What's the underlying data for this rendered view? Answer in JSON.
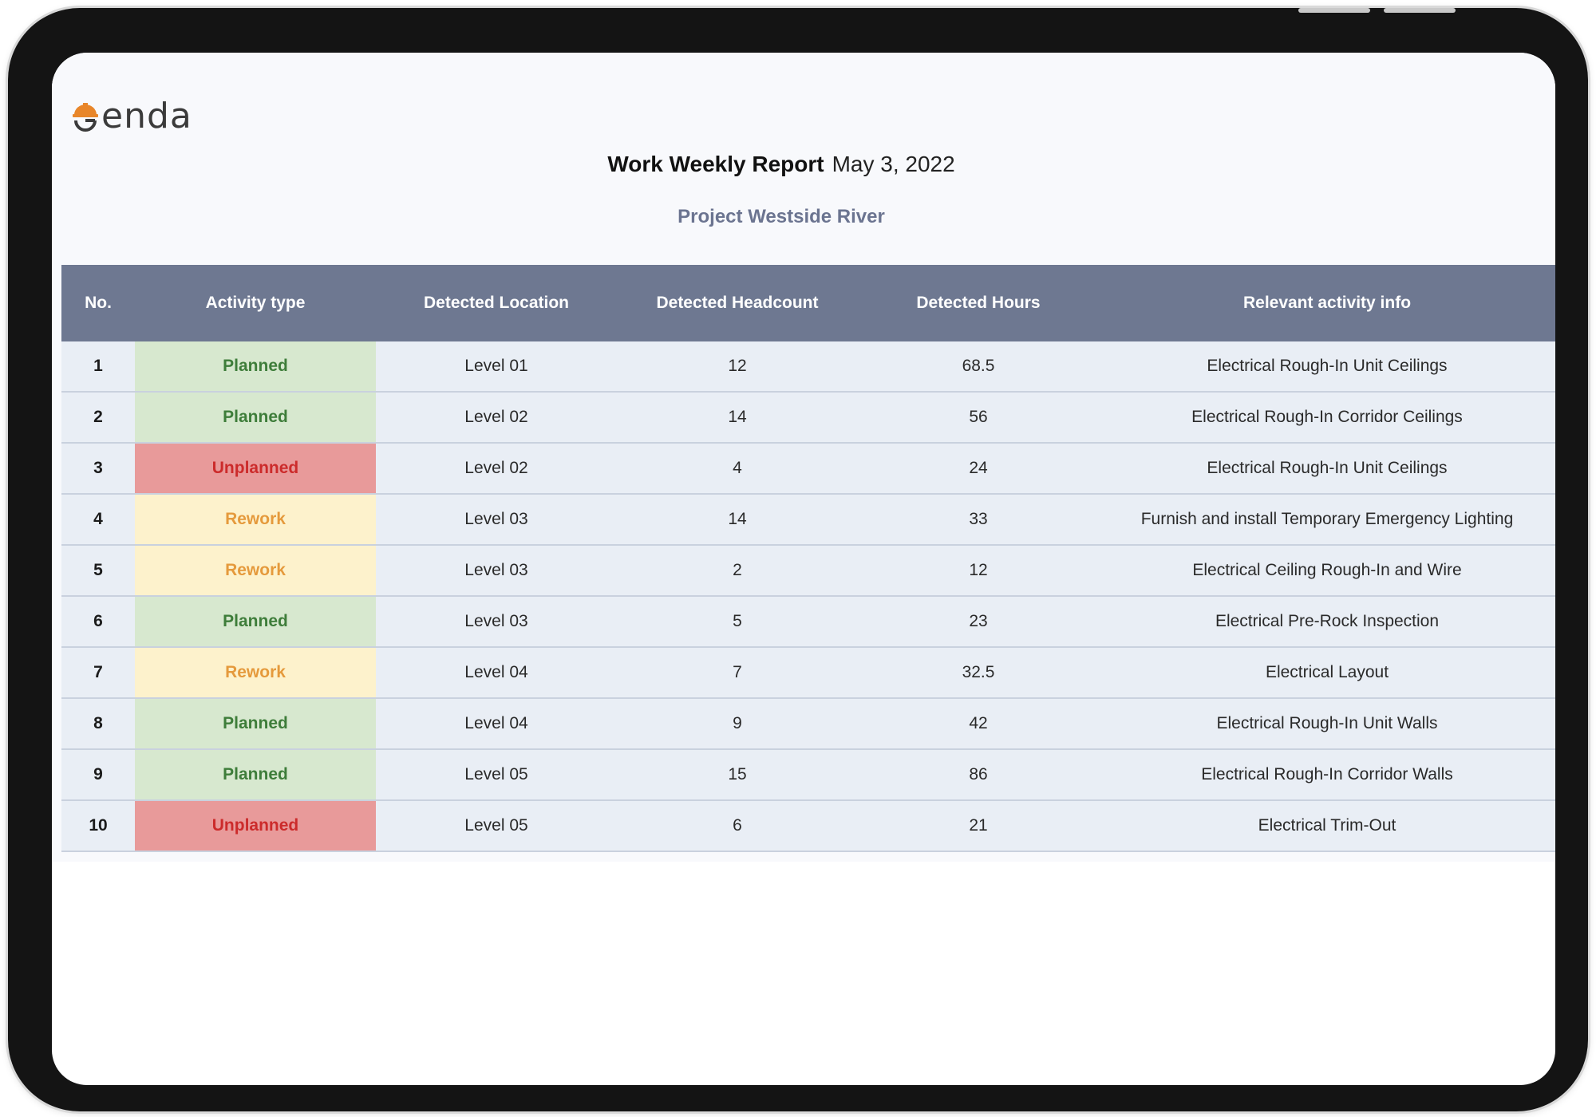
{
  "brand": {
    "logo_text": "enda",
    "accent_color": "#e8862a"
  },
  "report": {
    "title": "Work Weekly Report",
    "date": "May 3, 2022",
    "project": "Project Westside River"
  },
  "table": {
    "columns": [
      "No.",
      "Activity type",
      "Detected Location",
      "Detected Headcount",
      "Detected Hours",
      "Relevant activity info"
    ],
    "rows": [
      {
        "no": "1",
        "activity": "Planned",
        "location": "Level 01",
        "headcount": "12",
        "hours": "68.5",
        "info": "Electrical Rough-In Unit Ceilings"
      },
      {
        "no": "2",
        "activity": "Planned",
        "location": "Level 02",
        "headcount": "14",
        "hours": "56",
        "info": "Electrical Rough-In Corridor Ceilings"
      },
      {
        "no": "3",
        "activity": "Unplanned",
        "location": "Level 02",
        "headcount": "4",
        "hours": "24",
        "info": "Electrical Rough-In Unit Ceilings"
      },
      {
        "no": "4",
        "activity": "Rework",
        "location": "Level 03",
        "headcount": "14",
        "hours": "33",
        "info": "Furnish and install Temporary Emergency Lighting"
      },
      {
        "no": "5",
        "activity": "Rework",
        "location": "Level 03",
        "headcount": "2",
        "hours": "12",
        "info": "Electrical Ceiling Rough-In and Wire"
      },
      {
        "no": "6",
        "activity": "Planned",
        "location": "Level 03",
        "headcount": "5",
        "hours": "23",
        "info": "Electrical Pre-Rock Inspection"
      },
      {
        "no": "7",
        "activity": "Rework",
        "location": "Level 04",
        "headcount": "7",
        "hours": "32.5",
        "info": "Electrical Layout"
      },
      {
        "no": "8",
        "activity": "Planned",
        "location": "Level 04",
        "headcount": "9",
        "hours": "42",
        "info": "Electrical Rough-In Unit Walls"
      },
      {
        "no": "9",
        "activity": "Planned",
        "location": "Level 05",
        "headcount": "15",
        "hours": "86",
        "info": "Electrical Rough-In Corridor Walls"
      },
      {
        "no": "10",
        "activity": "Unplanned",
        "location": "Level 05",
        "headcount": "6",
        "hours": "21",
        "info": "Electrical Trim-Out"
      }
    ]
  }
}
